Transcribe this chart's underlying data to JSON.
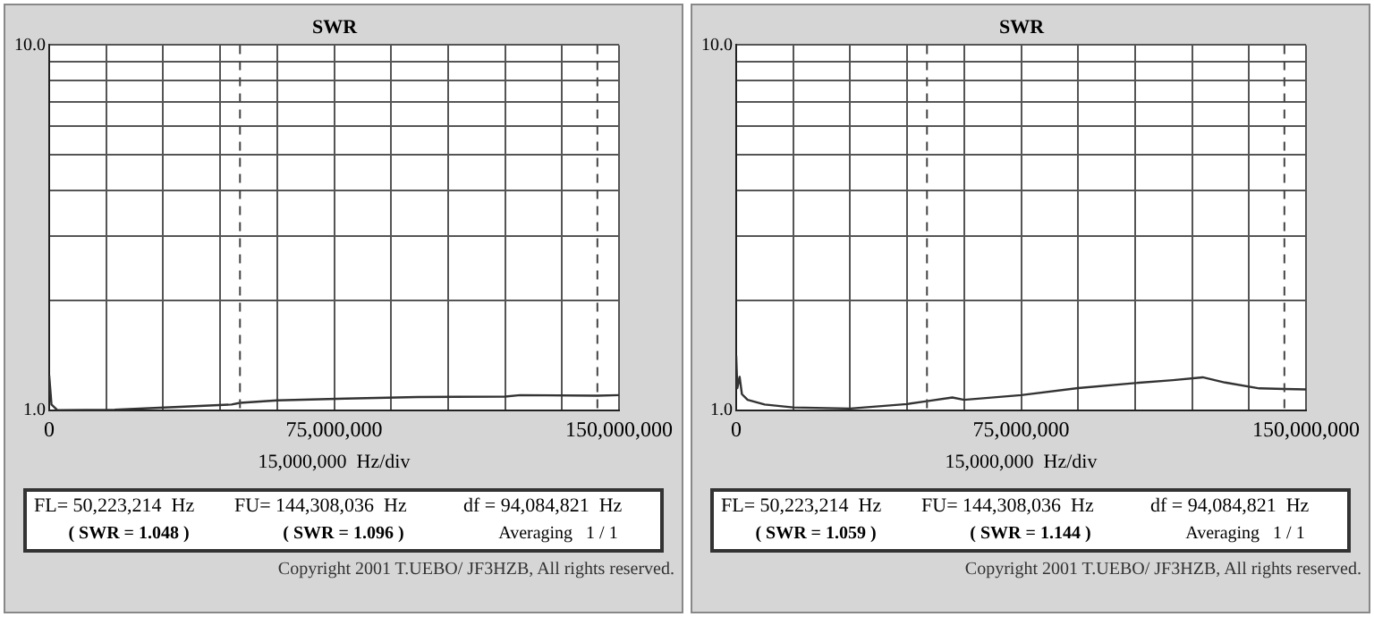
{
  "chart_data": [
    {
      "type": "line",
      "title": "SWR",
      "xlabel": "15,000,000  Hz/div",
      "log": "y",
      "grid": true,
      "marker": "none",
      "line_style": "solid",
      "xlim": [
        0,
        150000000
      ],
      "xticks": [
        0,
        {
          "value": 15000000,
          "label": null
        },
        {
          "value": 30000000,
          "label": null
        },
        {
          "value": 45000000,
          "label": null
        },
        {
          "value": 60000000,
          "label": null
        },
        {
          "value": 75000000,
          "label": "75,000,000"
        },
        {
          "value": 90000000,
          "label": null
        },
        {
          "value": 105000000,
          "label": null
        },
        {
          "value": 120000000,
          "label": null
        },
        {
          "value": 135000000,
          "label": null
        },
        {
          "value": 150000000,
          "label": "150,000,000"
        }
      ],
      "ylim": [
        1,
        10
      ],
      "yticks": [
        {
          "value": 1,
          "label": "1.0"
        },
        {
          "value": 2,
          "label": null
        },
        {
          "value": 3,
          "label": null
        },
        {
          "value": 4,
          "label": null
        },
        {
          "value": 5,
          "label": null
        },
        {
          "value": 6,
          "label": null
        },
        {
          "value": 7,
          "label": null
        },
        {
          "value": 8,
          "label": null
        },
        {
          "value": 9,
          "label": null
        },
        {
          "value": 10,
          "label": "10.0"
        }
      ],
      "ref_lines": [
        {
          "axis": "x",
          "value": 50223214,
          "color": "#444444",
          "line_style": "dashed"
        },
        {
          "axis": "x",
          "value": 144308036,
          "color": "#444444",
          "line_style": "dashed"
        }
      ],
      "series": [
        {
          "color": "#333333",
          "x": [
            0,
            600000,
            2200000,
            17200000,
            33000000,
            48000000,
            50223214,
            60000000,
            78000000,
            97000000,
            120000000,
            124000000,
            144308036,
            150000000
          ],
          "values": [
            1.245,
            1.037,
            1.0,
            1.004,
            1.02,
            1.037,
            1.048,
            1.064,
            1.076,
            1.087,
            1.09,
            1.1,
            1.096,
            1.1
          ]
        }
      ],
      "annotations": [
        "FL= 50,223,214  Hz",
        "FU= 144,308,036  Hz",
        "df = 94,084,821  Hz",
        "( SWR = 1.048 )",
        "( SWR = 1.096 )",
        "Averaging   1 / 1",
        "Copyright 2001 T.UEBO/ JF3HZB, All rights reserved."
      ]
    },
    {
      "type": "line",
      "title": "SWR",
      "xlabel": "15,000,000  Hz/div",
      "log": "y",
      "grid": true,
      "marker": "none",
      "line_style": "solid",
      "xlim": [
        0,
        150000000
      ],
      "xticks": [
        0,
        {
          "value": 15000000,
          "label": null
        },
        {
          "value": 30000000,
          "label": null
        },
        {
          "value": 45000000,
          "label": null
        },
        {
          "value": 60000000,
          "label": null
        },
        {
          "value": 75000000,
          "label": "75,000,000"
        },
        {
          "value": 90000000,
          "label": null
        },
        {
          "value": 105000000,
          "label": null
        },
        {
          "value": 120000000,
          "label": null
        },
        {
          "value": 135000000,
          "label": null
        },
        {
          "value": 150000000,
          "label": "150,000,000"
        }
      ],
      "ylim": [
        1,
        10
      ],
      "yticks": [
        {
          "value": 1,
          "label": "1.0"
        },
        {
          "value": 2,
          "label": null
        },
        {
          "value": 3,
          "label": null
        },
        {
          "value": 4,
          "label": null
        },
        {
          "value": 5,
          "label": null
        },
        {
          "value": 6,
          "label": null
        },
        {
          "value": 7,
          "label": null
        },
        {
          "value": 8,
          "label": null
        },
        {
          "value": 9,
          "label": null
        },
        {
          "value": 10,
          "label": "10.0"
        }
      ],
      "ref_lines": [
        {
          "axis": "x",
          "value": 50223214,
          "color": "#444444",
          "line_style": "dashed"
        },
        {
          "axis": "x",
          "value": 144308036,
          "color": "#444444",
          "line_style": "dashed"
        }
      ],
      "series": [
        {
          "color": "#333333",
          "x": [
            0,
            300000,
            900000,
            1500000,
            3000000,
            7500000,
            15000000,
            30000000,
            45000000,
            50223214,
            56900000,
            60000000,
            75000000,
            90000000,
            105000000,
            115000000,
            122800000,
            128700000,
            137700000,
            144308036,
            150000000
          ],
          "values": [
            1.41,
            1.15,
            1.235,
            1.107,
            1.068,
            1.037,
            1.018,
            1.011,
            1.04,
            1.059,
            1.084,
            1.068,
            1.1,
            1.15,
            1.187,
            1.209,
            1.231,
            1.191,
            1.148,
            1.144,
            1.14
          ]
        }
      ],
      "annotations": [
        "FL= 50,223,214  Hz",
        "FU= 144,308,036  Hz",
        "df = 94,084,821  Hz",
        "( SWR = 1.059 )",
        "( SWR = 1.144 )",
        "Averaging   1 / 1",
        "Copyright 2001 T.UEBO/ JF3HZB, All rights reserved."
      ]
    }
  ]
}
